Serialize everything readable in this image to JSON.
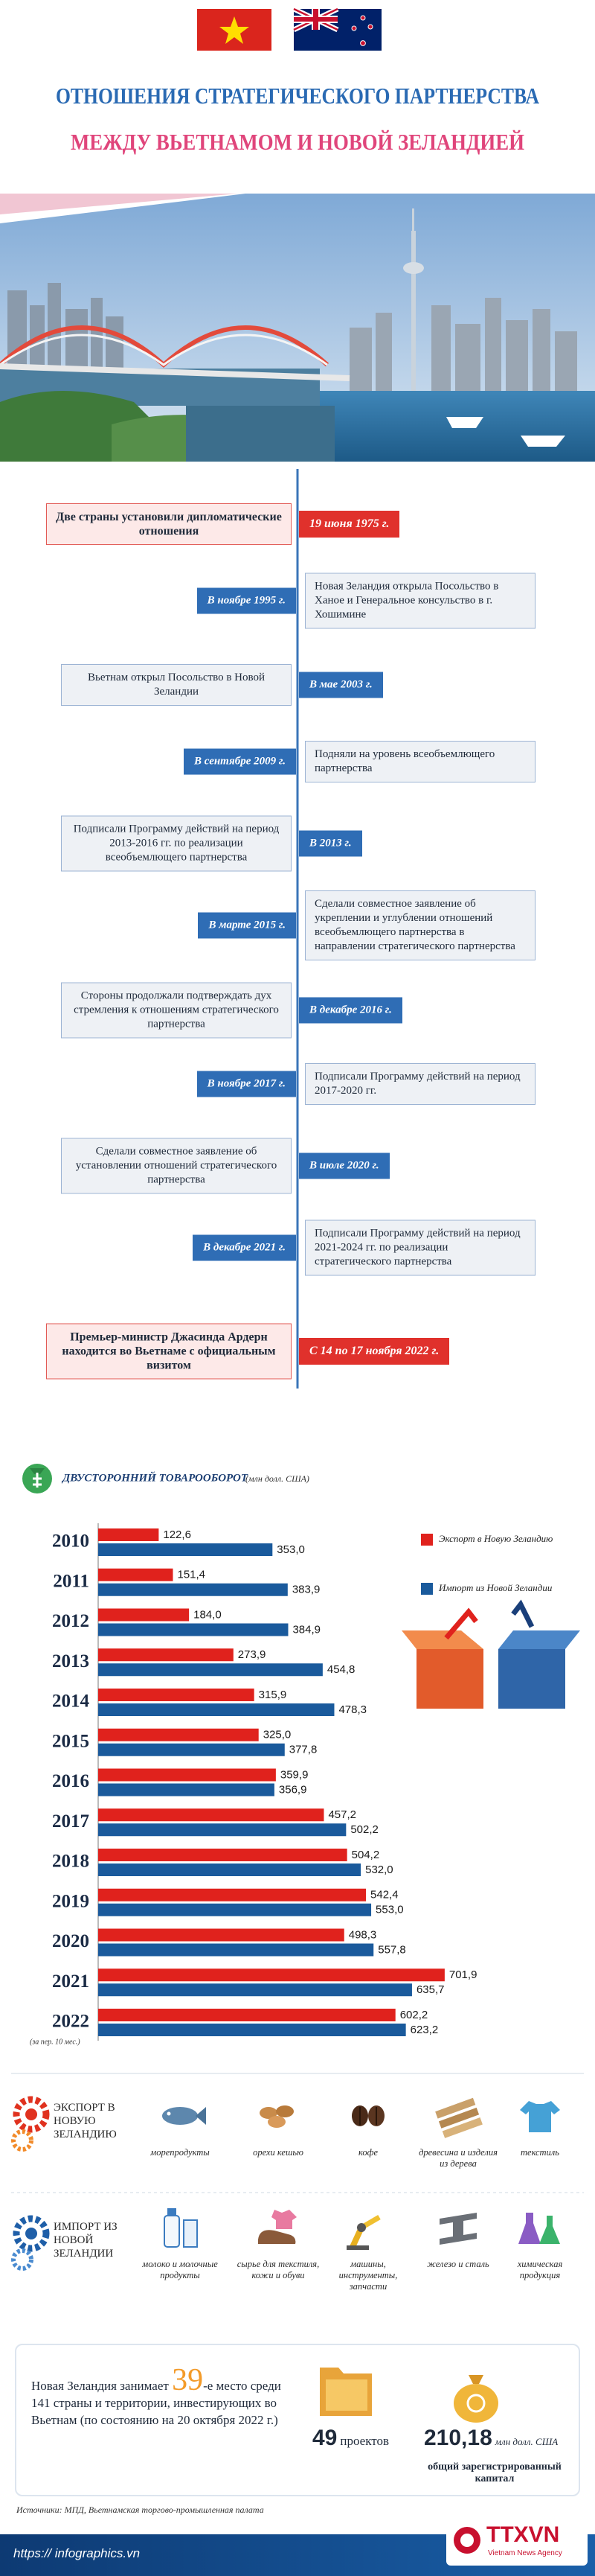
{
  "header": {
    "title_line1": "ОТНОШЕНИЯ СТРАТЕГИЧЕСКОГО ПАРТНЕРСТВА",
    "title_line2": "МЕЖДУ ВЬЕТНАМОМ И НОВОЙ ЗЕЛАНДИЕЙ"
  },
  "timeline": [
    {
      "date": "19 июня 1975 г.",
      "text": "Две страны установили дипломатические отношения",
      "side": "left",
      "highlight": true
    },
    {
      "date": "В ноябре 1995 г.",
      "text": "Новая Зеландия открыла Посольство в Ханое и Генеральное консульство в г. Хошимине",
      "side": "right",
      "highlight": false
    },
    {
      "date": "В мае 2003 г.",
      "text": "Вьетнам открыл Посольство в Новой Зеландии",
      "side": "left",
      "highlight": false
    },
    {
      "date": "В сентябре 2009 г.",
      "text": "Подняли на уровень всеобъемлющего партнерства",
      "side": "right",
      "highlight": false
    },
    {
      "date": "В 2013 г.",
      "text": "Подписали Программу действий на период 2013-2016 гг. по реализации всеобъемлющего партнерства",
      "side": "left",
      "highlight": false
    },
    {
      "date": "В марте 2015 г.",
      "text": "Сделали совместное заявление об укреплении и углублении отношений всеобъемлющего партнерства в направлении стратегического партнерства",
      "side": "right",
      "highlight": false
    },
    {
      "date": "В декабре 2016 г.",
      "text": "Стороны продолжали подтверждать дух стремления к отношениям стратегического партнерства",
      "side": "left",
      "highlight": false
    },
    {
      "date": "В ноябре 2017 г.",
      "text": "Подписали Программу действий на период 2017-2020 гг.",
      "side": "right",
      "highlight": false
    },
    {
      "date": "В июле 2020 г.",
      "text": "Сделали совместное заявление об установлении отношений стратегического партнерства",
      "side": "left",
      "highlight": false
    },
    {
      "date": "В декабре 2021 г.",
      "text": "Подписали Программу действий на период 2021-2024 гг. по реализации стратегического партнерства",
      "side": "right",
      "highlight": false
    },
    {
      "date": "С 14 по 17 ноября 2022 г.",
      "text": "Премьер-министр Джасинда Ардерн находится во Вьетнаме с официальным визитом",
      "side": "left",
      "highlight": true
    }
  ],
  "chart_data": {
    "type": "bar",
    "orientation": "horizontal",
    "title": "ДВУСТОРОННИЙ ТОВАРООБОРОТ",
    "subtitle": "(млн долл. США)",
    "categories": [
      "2010",
      "2011",
      "2012",
      "2013",
      "2014",
      "2015",
      "2016",
      "2017",
      "2018",
      "2019",
      "2020",
      "2021",
      "2022"
    ],
    "note": "(за пер. 10 мес.)",
    "xlim": [
      0,
      800
    ],
    "series": [
      {
        "name": "Экспорт в Новую Зеландию",
        "color": "#e0221d",
        "values": [
          122.6,
          151.4,
          184.0,
          273.9,
          315.9,
          325.0,
          359.9,
          457.2,
          504.2,
          542.4,
          498.3,
          701.9,
          602.2
        ],
        "value_labels": [
          "122,6",
          "151,4",
          "184,0",
          "273,9",
          "315,9",
          "325,0",
          "359,9",
          "457,2",
          "504,2",
          "542,4",
          "498,3",
          "701,9",
          "602,2"
        ]
      },
      {
        "name": "Импорт из Новой Зеландии",
        "color": "#1a5a9c",
        "values": [
          353.0,
          383.9,
          384.9,
          454.8,
          478.3,
          377.8,
          356.9,
          502.2,
          532.0,
          553.0,
          557.8,
          635.7,
          623.2
        ],
        "value_labels": [
          "353,0",
          "383,9",
          "384,9",
          "454,8",
          "478,3",
          "377,8",
          "356,9",
          "502,2",
          "532,0",
          "553,0",
          "557,8",
          "635,7",
          "623,2"
        ]
      }
    ]
  },
  "export": {
    "label": "ЭКСПОРТ В НОВУЮ ЗЕЛАНДИЮ",
    "items": [
      "морепродукты",
      "орехи кешью",
      "кофе",
      "древесина и изделия из дерева",
      "текстиль"
    ]
  },
  "import": {
    "label": "ИМПОРТ ИЗ НОВОЙ ЗЕЛАНДИИ",
    "items": [
      "молоко и молочные продукты",
      "сырье для текстиля, кожи и обуви",
      "машины, инструменты, запчасти",
      "железо и сталь",
      "химическая продукция"
    ]
  },
  "investment": {
    "before": "Новая Зеландия занимает",
    "rank": "39",
    "after": "-е место среди 141 страны и территории, инвестирующих во Вьетнам (по состоянию на 20 октября 2022 г.)",
    "projects": "49",
    "projects_label": "проектов",
    "capital": "210,18",
    "capital_unit": "млн долл. США",
    "capital_label": "общий зарегистрированный капитал"
  },
  "footer": {
    "sources": "Источники: МПД, Вьетнамская торгово-промышленная палата",
    "logo": "TTXVN",
    "logo_sub": "Vietnam News Agency",
    "url": "https:// infographics.vn"
  }
}
